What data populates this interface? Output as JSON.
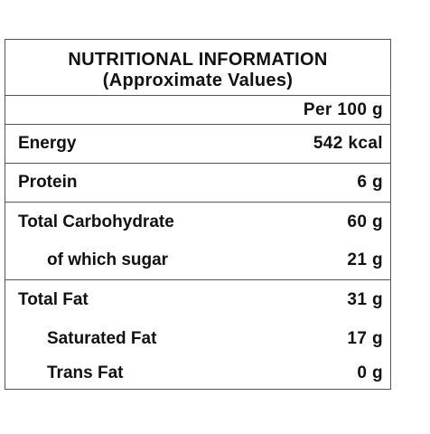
{
  "header": {
    "title": "NUTRITIONAL INFORMATION",
    "subtitle": "(Approximate Values)"
  },
  "column_header": "Per 100 g",
  "rows": [
    {
      "label": "Energy",
      "value": "542 kcal"
    },
    {
      "label": "Protein",
      "value": "6 g"
    },
    {
      "label": "Total Carbohydrate",
      "value": "60 g"
    },
    {
      "label": "of which sugar",
      "value": "21 g"
    },
    {
      "label": "Total Fat",
      "value": "31 g"
    },
    {
      "label": "Saturated Fat",
      "value": "17 g"
    },
    {
      "label": "Trans Fat",
      "value": "0 g"
    }
  ]
}
